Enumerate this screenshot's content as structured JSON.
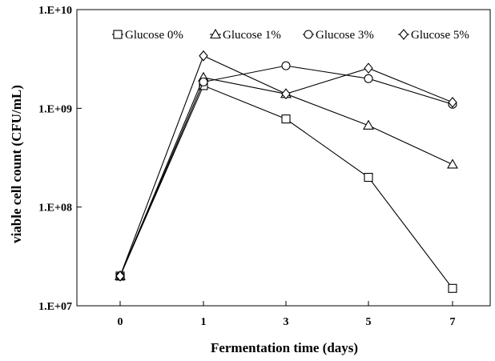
{
  "chart_data": {
    "type": "line",
    "title": "",
    "xlabel": "Fermentation time (days)",
    "ylabel": "viable cell count (CFU/mL)",
    "yscale": "log",
    "ylim": [
      10000000,
      10000000000
    ],
    "y_ticks": [
      10000000,
      100000000,
      1000000000,
      10000000000
    ],
    "y_tick_labels": [
      "1.E+07",
      "1.E+08",
      "1.E+09",
      "1.E+10"
    ],
    "categories": [
      "0",
      "1",
      "3",
      "5",
      "7"
    ],
    "grid": false,
    "legend_position": "top",
    "series": [
      {
        "name": "Glucose 0%",
        "marker": "square",
        "values": [
          20000000,
          1700000000,
          780000000,
          200000000,
          15000000
        ]
      },
      {
        "name": "Glucose 1%",
        "marker": "triangle",
        "values": [
          20000000,
          2050000000,
          1400000000,
          670000000,
          270000000
        ]
      },
      {
        "name": "Glucose 3%",
        "marker": "circle",
        "values": [
          20000000,
          1850000000,
          2700000000,
          2000000000,
          1100000000
        ]
      },
      {
        "name": "Glucose 5%",
        "marker": "diamond",
        "values": [
          20000000,
          3400000000,
          1400000000,
          2550000000,
          1150000000
        ]
      }
    ]
  }
}
